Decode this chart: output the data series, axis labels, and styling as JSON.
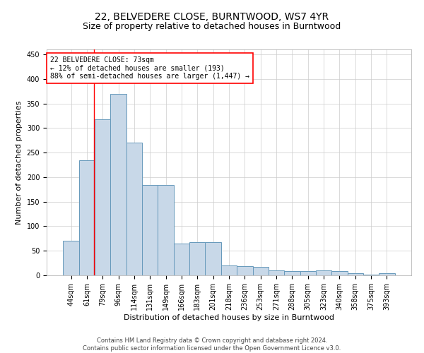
{
  "title": "22, BELVEDERE CLOSE, BURNTWOOD, WS7 4YR",
  "subtitle": "Size of property relative to detached houses in Burntwood",
  "xlabel": "Distribution of detached houses by size in Burntwood",
  "ylabel": "Number of detached properties",
  "categories": [
    "44sqm",
    "61sqm",
    "79sqm",
    "96sqm",
    "114sqm",
    "131sqm",
    "149sqm",
    "166sqm",
    "183sqm",
    "201sqm",
    "218sqm",
    "236sqm",
    "253sqm",
    "271sqm",
    "288sqm",
    "305sqm",
    "323sqm",
    "340sqm",
    "358sqm",
    "375sqm",
    "393sqm"
  ],
  "values": [
    70,
    235,
    318,
    370,
    270,
    184,
    184,
    65,
    67,
    68,
    20,
    18,
    17,
    10,
    8,
    8,
    10,
    8,
    4,
    1,
    4
  ],
  "bar_color": "#c8d8e8",
  "bar_edge_color": "#6699bb",
  "annotation_box_text": "22 BELVEDERE CLOSE: 73sqm\n← 12% of detached houses are smaller (193)\n88% of semi-detached houses are larger (1,447) →",
  "annotation_box_color": "white",
  "annotation_box_edge_color": "red",
  "vline_color": "red",
  "vline_x_index": 1.47,
  "ylim": [
    0,
    460
  ],
  "yticks": [
    0,
    50,
    100,
    150,
    200,
    250,
    300,
    350,
    400,
    450
  ],
  "grid_color": "#cccccc",
  "background_color": "white",
  "footnote": "Contains HM Land Registry data © Crown copyright and database right 2024.\nContains public sector information licensed under the Open Government Licence v3.0.",
  "title_fontsize": 10,
  "subtitle_fontsize": 9,
  "xlabel_fontsize": 8,
  "ylabel_fontsize": 8,
  "tick_fontsize": 7,
  "footnote_fontsize": 6,
  "annotation_fontsize": 7
}
